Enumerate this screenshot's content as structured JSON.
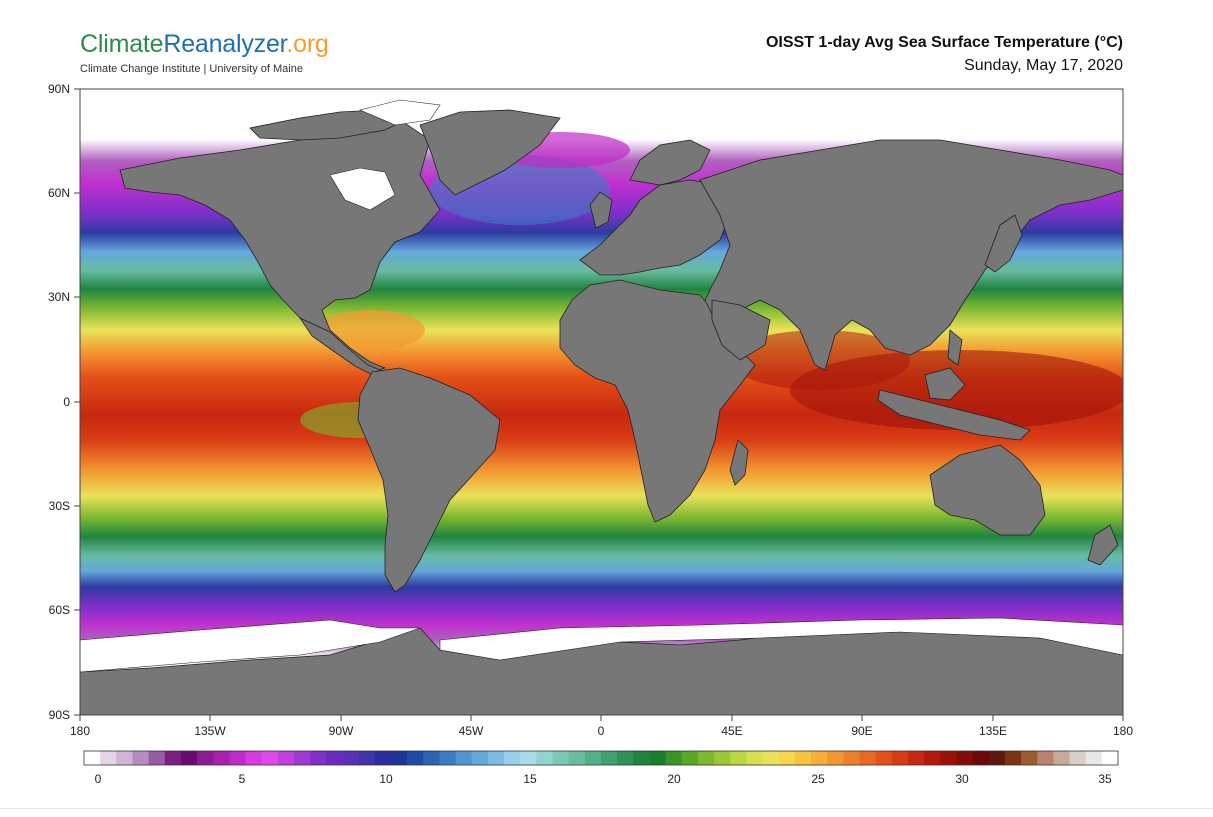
{
  "header": {
    "logo": {
      "part1": "Climate",
      "part2": "Reanalyzer",
      "part3": ".org"
    },
    "logo_subtitle": "Climate Change Institute | University of Maine",
    "title": "OISST 1-day Avg Sea Surface Temperature (°C)",
    "date": "Sunday, May 17, 2020"
  },
  "map": {
    "lat_labels": [
      "90N",
      "60N",
      "30N",
      "0",
      "30S",
      "60S",
      "90S"
    ],
    "lon_labels": [
      "180",
      "135W",
      "90W",
      "45W",
      "0",
      "45E",
      "90E",
      "135E",
      "180"
    ],
    "land_color": "#777777",
    "ice_color": "#ffffff"
  },
  "colorbar": {
    "tick_labels": [
      "0",
      "5",
      "10",
      "15",
      "20",
      "25",
      "30",
      "35"
    ],
    "colors": [
      "#ffffff",
      "#e6d4e6",
      "#d2b4d6",
      "#b48cc0",
      "#965aa6",
      "#7a1e80",
      "#6a0a6e",
      "#8c1c96",
      "#a820b0",
      "#c02ac8",
      "#d83ae0",
      "#e048e8",
      "#c040e0",
      "#a038d4",
      "#8030c8",
      "#6a2cc0",
      "#5a30b8",
      "#4034a8",
      "#2c2ca0",
      "#1e3496",
      "#1e4ca4",
      "#2c64b4",
      "#3c7cc4",
      "#5094d0",
      "#64a8dc",
      "#7cbce4",
      "#98d0ec",
      "#a8dce8",
      "#90d4d0",
      "#7cc8b8",
      "#68bca0",
      "#54b088",
      "#40a070",
      "#309058",
      "#208440",
      "#18802c",
      "#3c9428",
      "#5aa828",
      "#7cb830",
      "#9cc838",
      "#bcd640",
      "#d8e050",
      "#eae25a",
      "#f6d64c",
      "#f8c440",
      "#f6ae38",
      "#f29830",
      "#ee8028",
      "#ea6820",
      "#e45018",
      "#d83c14",
      "#c82810",
      "#b4180c",
      "#9c100a",
      "#840c08",
      "#6c0806",
      "#5c1808",
      "#7c3414",
      "#a05a30",
      "#b88470",
      "#c8a898",
      "#d8d0c8",
      "#e8e8e8",
      "#ffffff"
    ]
  }
}
